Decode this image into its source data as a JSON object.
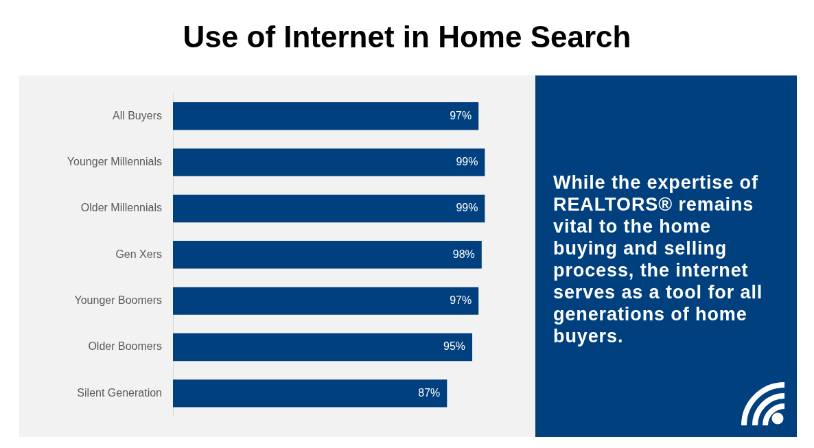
{
  "chart_data": [
    {
      "type": "bar",
      "title": "Use of Internet in Home Search",
      "orientation": "horizontal",
      "categories": [
        "All Buyers",
        "Younger Millennials",
        "Older Millennials",
        "Gen Xers",
        "Younger Boomers",
        "Older Boomers",
        "Silent Generation"
      ],
      "values": [
        97,
        99,
        99,
        98,
        97,
        95,
        87
      ],
      "value_labels": [
        "97%",
        "99%",
        "99%",
        "98%",
        "97%",
        "95%",
        "87%"
      ],
      "color": "#00407f",
      "tick_labels": "y"
    },
    {
      "type": "other",
      "annotations": [
        "While the expertise of REALTORS® remains vital to the home buying and selling process, the internet serves as a tool for all generations of home buyers."
      ]
    }
  ]
}
